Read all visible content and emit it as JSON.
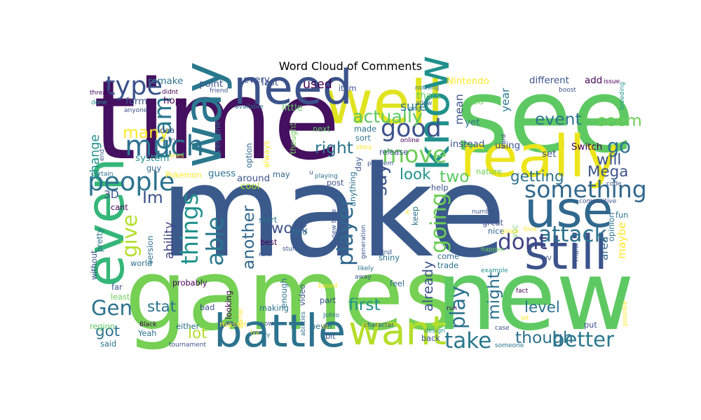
{
  "chart_data": {
    "type": "wordcloud",
    "title": "Word Cloud of Comments",
    "background": "#ffffff",
    "colormap": "viridis",
    "words": [
      {
        "text": "make",
        "weight": 1.0,
        "color": "#3b5a8c"
      },
      {
        "text": "time",
        "weight": 0.86,
        "color": "#45105f"
      },
      {
        "text": "see",
        "weight": 0.8,
        "color": "#5ec962"
      },
      {
        "text": "games",
        "weight": 0.77,
        "color": "#75d054"
      },
      {
        "text": "new",
        "weight": 0.75,
        "color": "#5ec962"
      },
      {
        "text": "well",
        "weight": 0.46,
        "color": "#e0e31f"
      },
      {
        "text": "really",
        "weight": 0.44,
        "color": "#ece51b"
      },
      {
        "text": "way",
        "weight": 0.4,
        "color": "#2a788e"
      },
      {
        "text": "use",
        "weight": 0.38,
        "color": "#31688e"
      },
      {
        "text": "need",
        "weight": 0.36,
        "color": "#3b528b"
      },
      {
        "text": "even",
        "weight": 0.4,
        "color": "#35b779"
      },
      {
        "text": "still",
        "weight": 0.36,
        "color": "#3b528b"
      },
      {
        "text": "battle",
        "weight": 0.34,
        "color": "#2c728e"
      },
      {
        "text": "know",
        "weight": 0.33,
        "color": "#21918c"
      },
      {
        "text": "want",
        "weight": 0.3,
        "color": "#b5de2b"
      },
      {
        "text": "much",
        "weight": 0.21,
        "color": "#2c728e"
      },
      {
        "text": "type",
        "weight": 0.19,
        "color": "#3b528b"
      },
      {
        "text": "team",
        "weight": 0.18,
        "color": "#2a788e"
      },
      {
        "text": "people",
        "weight": 0.19,
        "color": "#2c728e"
      },
      {
        "text": "good",
        "weight": 0.18,
        "color": "#3b528b"
      },
      {
        "text": "move",
        "weight": 0.17,
        "color": "#6ece58"
      },
      {
        "text": "something",
        "weight": 0.17,
        "color": "#31688e"
      },
      {
        "text": "attack",
        "weight": 0.16,
        "color": "#2c728e"
      },
      {
        "text": "things",
        "weight": 0.17,
        "color": "#21918c"
      },
      {
        "text": "able",
        "weight": 0.17,
        "color": "#2a788e"
      },
      {
        "text": "player",
        "weight": 0.16,
        "color": "#31688e"
      },
      {
        "text": "going",
        "weight": 0.16,
        "color": "#6ece58"
      },
      {
        "text": "dont",
        "weight": 0.16,
        "color": "#414487"
      },
      {
        "text": "take",
        "weight": 0.16,
        "color": "#2a788e"
      },
      {
        "text": "better",
        "weight": 0.15,
        "color": "#2a788e"
      },
      {
        "text": "play",
        "weight": 0.15,
        "color": "#2c728e"
      },
      {
        "text": "give",
        "weight": 0.15,
        "color": "#b5de2b"
      },
      {
        "text": "Gen",
        "weight": 0.15,
        "color": "#2c728e"
      },
      {
        "text": "say",
        "weight": 0.14,
        "color": "#3b528b"
      },
      {
        "text": "actually",
        "weight": 0.13,
        "color": "#5ec962"
      },
      {
        "text": "many",
        "weight": 0.12,
        "color": "#fde725"
      },
      {
        "text": "event",
        "weight": 0.12,
        "color": "#2c728e"
      },
      {
        "text": "seem",
        "weight": 0.12,
        "color": "#6ece58"
      },
      {
        "text": "right",
        "weight": 0.12,
        "color": "#2c728e"
      },
      {
        "text": "go",
        "weight": 0.14,
        "color": "#2c728e"
      },
      {
        "text": "getting",
        "weight": 0.11,
        "color": "#2c728e"
      },
      {
        "text": "Mega",
        "weight": 0.11,
        "color": "#3b528b"
      },
      {
        "text": "will",
        "weight": 0.11,
        "color": "#3b528b"
      },
      {
        "text": "two",
        "weight": 0.12,
        "color": "#5ec962"
      },
      {
        "text": "look",
        "weight": 0.11,
        "color": "#21918c"
      },
      {
        "text": "work",
        "weight": 0.11,
        "color": "#3b528b"
      },
      {
        "text": "another",
        "weight": 0.12,
        "color": "#31688e"
      },
      {
        "text": "Im",
        "weight": 0.12,
        "color": "#3b528b"
      },
      {
        "text": "first",
        "weight": 0.12,
        "color": "#21918c"
      },
      {
        "text": "though",
        "weight": 0.12,
        "color": "#2c728e"
      },
      {
        "text": "level",
        "weight": 0.11,
        "color": "#2c728e"
      },
      {
        "text": "might",
        "weight": 0.12,
        "color": "#2c728e"
      },
      {
        "text": "already",
        "weight": 0.1,
        "color": "#3b528b"
      },
      {
        "text": "stat",
        "weight": 0.11,
        "color": "#2c728e"
      },
      {
        "text": "got",
        "weight": 0.11,
        "color": "#2c728e"
      },
      {
        "text": "lot",
        "weight": 0.11,
        "color": "#b5de2b"
      },
      {
        "text": "ability",
        "weight": 0.09,
        "color": "#414487"
      },
      {
        "text": "change",
        "weight": 0.09,
        "color": "#21918c"
      },
      {
        "text": "sure",
        "weight": 0.09,
        "color": "#2a788e"
      },
      {
        "text": "used",
        "weight": 0.09,
        "color": "#440154"
      },
      {
        "text": "mean",
        "weight": 0.08,
        "color": "#3b528b"
      },
      {
        "text": "year",
        "weight": 0.08,
        "color": "#2a788e"
      },
      {
        "text": "maybe",
        "weight": 0.08,
        "color": "#fde725"
      },
      {
        "text": "area",
        "weight": 0.08,
        "color": "#31688e"
      },
      {
        "text": "3D",
        "weight": 0.08,
        "color": "#3b528b"
      },
      {
        "text": "remake",
        "weight": 0.07,
        "color": "#2c728e"
      },
      {
        "text": "point",
        "weight": 0.07,
        "color": "#3b528b"
      },
      {
        "text": "last",
        "weight": 0.07,
        "color": "#3b528b"
      },
      {
        "text": "every",
        "weight": 0.07,
        "color": "#3b528b"
      },
      {
        "text": "form",
        "weight": 0.07,
        "color": "#3b528b"
      },
      {
        "text": "hope",
        "weight": 0.07,
        "color": "#440154"
      },
      {
        "text": "little",
        "weight": 0.07,
        "color": "#5ec962"
      },
      {
        "text": "thats",
        "weight": 0.07,
        "color": "#5ec962"
      },
      {
        "text": "different",
        "weight": 0.07,
        "color": "#3b528b"
      },
      {
        "text": "add",
        "weight": 0.07,
        "color": "#440154"
      },
      {
        "text": "instead",
        "weight": 0.07,
        "color": "#3b528b"
      },
      {
        "text": "using",
        "weight": 0.07,
        "color": "#3b528b"
      },
      {
        "text": "yet",
        "weight": 0.07,
        "color": "#2c728e"
      },
      {
        "text": "Switch",
        "weight": 0.07,
        "color": "#440154"
      },
      {
        "text": "Nintendo",
        "weight": 0.07,
        "color": "#fde725"
      },
      {
        "text": "TCG",
        "weight": 0.06,
        "color": "#6ece58"
      },
      {
        "text": "set",
        "weight": 0.07,
        "color": "#3b528b"
      },
      {
        "text": "nature",
        "weight": 0.06,
        "color": "#6ece58"
      },
      {
        "text": "guess",
        "weight": 0.07,
        "color": "#2c728e"
      },
      {
        "text": "around",
        "weight": 0.07,
        "color": "#3b528b"
      },
      {
        "text": "cool",
        "weight": 0.07,
        "color": "#b5de2b"
      },
      {
        "text": "system",
        "weight": 0.07,
        "color": "#21918c"
      },
      {
        "text": "idea",
        "weight": 0.06,
        "color": "#3b528b"
      },
      {
        "text": "guy",
        "weight": 0.06,
        "color": "#31688e"
      },
      {
        "text": "Pokemon",
        "weight": 0.06,
        "color": "#fde725"
      },
      {
        "text": "cant",
        "weight": 0.06,
        "color": "#440154"
      },
      {
        "text": "version",
        "weight": 0.06,
        "color": "#2c728e"
      },
      {
        "text": "pretty",
        "weight": 0.06,
        "color": "#2c728e"
      },
      {
        "text": "world",
        "weight": 0.06,
        "color": "#2c728e"
      },
      {
        "text": "without",
        "weight": 0.06,
        "color": "#3b528b"
      },
      {
        "text": "far",
        "weight": 0.06,
        "color": "#3b528b"
      },
      {
        "text": "least",
        "weight": 0.06,
        "color": "#6ece58"
      },
      {
        "text": "probably",
        "weight": 0.06,
        "color": "#440154"
      },
      {
        "text": "region",
        "weight": 0.06,
        "color": "#5ec962"
      },
      {
        "text": "said",
        "weight": 0.06,
        "color": "#2c728e"
      },
      {
        "text": "bad",
        "weight": 0.06,
        "color": "#3b528b"
      },
      {
        "text": "either",
        "weight": 0.06,
        "color": "#2c728e"
      },
      {
        "text": "Black",
        "weight": 0.05,
        "color": "#440154"
      },
      {
        "text": "Yeah",
        "weight": 0.06,
        "color": "#2c728e"
      },
      {
        "text": "tournament",
        "weight": 0.05,
        "color": "#3b528b"
      },
      {
        "text": "looking",
        "weight": 0.06,
        "color": "#440154"
      },
      {
        "text": "reason",
        "weight": 0.06,
        "color": "#fde725"
      },
      {
        "text": "best",
        "weight": 0.06,
        "color": "#440154"
      },
      {
        "text": "making",
        "weight": 0.06,
        "color": "#2c728e"
      },
      {
        "text": "starter",
        "weight": 0.05,
        "color": "#fde725"
      },
      {
        "text": "Ive",
        "weight": 0.05,
        "color": "#fde725"
      },
      {
        "text": "enough",
        "weight": 0.06,
        "color": "#2c728e"
      },
      {
        "text": "video",
        "weight": 0.06,
        "color": "#3b528b"
      },
      {
        "text": "find",
        "weight": 0.06,
        "color": "#2c728e"
      },
      {
        "text": "part",
        "weight": 0.06,
        "color": "#3b528b"
      },
      {
        "text": "Johto",
        "weight": 0.05,
        "color": "#2c728e"
      },
      {
        "text": "never",
        "weight": 0.06,
        "color": "#2c728e"
      },
      {
        "text": "bit",
        "weight": 0.06,
        "color": "#3b528b"
      },
      {
        "text": "Ill",
        "weight": 0.05,
        "color": "#fde725"
      },
      {
        "text": "abilities",
        "weight": 0.05,
        "color": "#2c728e"
      },
      {
        "text": "character",
        "weight": 0.05,
        "color": "#3b528b"
      },
      {
        "text": "back",
        "weight": 0.06,
        "color": "#3b528b"
      },
      {
        "text": "design",
        "weight": 0.05,
        "color": "#21918c"
      },
      {
        "text": "run",
        "weight": 0.05,
        "color": "#440154"
      },
      {
        "text": "trade",
        "weight": 0.06,
        "color": "#2c728e"
      },
      {
        "text": "come",
        "weight": 0.06,
        "color": "#31688e"
      },
      {
        "text": "shiny",
        "weight": 0.06,
        "color": "#2c728e"
      },
      {
        "text": "feel",
        "weight": 0.06,
        "color": "#31688e"
      },
      {
        "text": "likely",
        "weight": 0.05,
        "color": "#2c728e"
      },
      {
        "text": "away",
        "weight": 0.05,
        "color": "#3b528b"
      },
      {
        "text": "nice",
        "weight": 0.06,
        "color": "#31688e"
      },
      {
        "text": "great",
        "weight": 0.06,
        "color": "#3b528b"
      },
      {
        "text": "VGC",
        "weight": 0.05,
        "color": "#6ece58"
      },
      {
        "text": "happen",
        "weight": 0.05,
        "color": "#6ece58"
      },
      {
        "text": "place",
        "weight": 0.05,
        "color": "#fde725"
      },
      {
        "text": "example",
        "weight": 0.05,
        "color": "#21918c"
      },
      {
        "text": "fact",
        "weight": 0.05,
        "color": "#440154"
      },
      {
        "text": "case",
        "weight": 0.05,
        "color": "#3b528b"
      },
      {
        "text": "someone",
        "weight": 0.05,
        "color": "#2c728e"
      },
      {
        "text": "let",
        "weight": 0.05,
        "color": "#fde725"
      },
      {
        "text": "put",
        "weight": 0.06,
        "color": "#3b528b"
      },
      {
        "text": "possible",
        "weight": 0.05,
        "color": "#fde725"
      },
      {
        "text": "fun",
        "weight": 0.06,
        "color": "#2c728e"
      },
      {
        "text": "love",
        "weight": 0.05,
        "color": "#fde725"
      },
      {
        "text": "opinion",
        "weight": 0.06,
        "color": "#2c728e"
      },
      {
        "text": "IV",
        "weight": 0.05,
        "color": "#3b528b"
      },
      {
        "text": "Thank",
        "weight": 0.05,
        "color": "#3b528b"
      },
      {
        "text": "number",
        "weight": 0.05,
        "color": "#3b528b"
      },
      {
        "text": "competitive",
        "weight": 0.05,
        "color": "#3b528b"
      },
      {
        "text": "code",
        "weight": 0.05,
        "color": "#3b528b"
      },
      {
        "text": "help",
        "weight": 0.06,
        "color": "#3b528b"
      },
      {
        "text": "keep",
        "weight": 0.06,
        "color": "#2c728e"
      },
      {
        "text": "X",
        "weight": 0.05,
        "color": "#fde725"
      },
      {
        "text": "kind",
        "weight": 0.05,
        "color": "#3b528b"
      },
      {
        "text": "generation",
        "weight": 0.05,
        "color": "#3b528b"
      },
      {
        "text": "new type",
        "weight": 0.05,
        "color": "#3b528b"
      },
      {
        "text": "anything",
        "weight": 0.06,
        "color": "#2c728e"
      },
      {
        "text": "day",
        "weight": 0.06,
        "color": "#3b528b"
      },
      {
        "text": "post",
        "weight": 0.06,
        "color": "#3b528b"
      },
      {
        "text": "playing",
        "weight": 0.05,
        "color": "#2c728e"
      },
      {
        "text": "u",
        "weight": 0.05,
        "color": "#3b528b"
      },
      {
        "text": "start",
        "weight": 0.06,
        "color": "#2c728e"
      },
      {
        "text": "rule",
        "weight": 0.05,
        "color": "#3b528b"
      },
      {
        "text": "stuff",
        "weight": 0.05,
        "color": "#3b528b"
      },
      {
        "text": "thought",
        "weight": 0.06,
        "color": "#6ece58"
      },
      {
        "text": "always",
        "weight": 0.06,
        "color": "#fde725"
      },
      {
        "text": "option",
        "weight": 0.06,
        "color": "#31688e"
      },
      {
        "text": "may",
        "weight": 0.06,
        "color": "#31688e"
      },
      {
        "text": "everyone",
        "weight": 0.06,
        "color": "#2c728e"
      },
      {
        "text": "try",
        "weight": 0.05,
        "color": "#3b528b"
      },
      {
        "text": "ones",
        "weight": 0.05,
        "color": "#fde725"
      },
      {
        "text": "available",
        "weight": 0.05,
        "color": "#2c728e"
      },
      {
        "text": "friend",
        "weight": 0.05,
        "color": "#3b528b"
      },
      {
        "text": "didnt",
        "weight": 0.05,
        "color": "#440154"
      },
      {
        "text": "Id",
        "weight": 0.06,
        "color": "#440154"
      },
      {
        "text": "next",
        "weight": 0.06,
        "color": "#5ec962"
      },
      {
        "text": "made",
        "weight": 0.06,
        "color": "#2c728e"
      },
      {
        "text": "sort",
        "weight": 0.06,
        "color": "#2c728e"
      },
      {
        "text": "story",
        "weight": 0.05,
        "color": "#fde725"
      },
      {
        "text": "online",
        "weight": 0.05,
        "color": "#440154"
      },
      {
        "text": "release",
        "weight": 0.06,
        "color": "#3b528b"
      },
      {
        "text": "item",
        "weight": 0.06,
        "color": "#3b528b"
      },
      {
        "text": "s",
        "weight": 0.06,
        "color": "#3b528b"
      },
      {
        "text": "nothing",
        "weight": 0.05,
        "color": "#2c728e"
      },
      {
        "text": "allow",
        "weight": 0.05,
        "color": "#31688e"
      },
      {
        "text": "long",
        "weight": 0.05,
        "color": "#2c728e"
      },
      {
        "text": "hard",
        "weight": 0.05,
        "color": "#3b528b"
      },
      {
        "text": "boost",
        "weight": 0.05,
        "color": "#3b528b"
      },
      {
        "text": "issue",
        "weight": 0.05,
        "color": "#440154"
      },
      {
        "text": "breeding",
        "weight": 0.05,
        "color": "#21918c"
      },
      {
        "text": "thread",
        "weight": 0.05,
        "color": "#440154"
      },
      {
        "text": "done",
        "weight": 0.05,
        "color": "#21918c"
      },
      {
        "text": "anyone",
        "weight": 0.05,
        "color": "#3b528b"
      },
      {
        "text": "end",
        "weight": 0.05,
        "color": "#3b528b"
      },
      {
        "text": "certain",
        "weight": 0.05,
        "color": "#2c728e"
      },
      {
        "text": "problem",
        "weight": 0.05,
        "color": "#3b528b"
      },
      {
        "text": "XY",
        "weight": 0.05,
        "color": "#2c728e"
      },
      {
        "text": "now",
        "weight": 0.05,
        "color": "#3b528b"
      },
      {
        "text": "based",
        "weight": 0.05,
        "color": "#fde725"
      }
    ]
  }
}
